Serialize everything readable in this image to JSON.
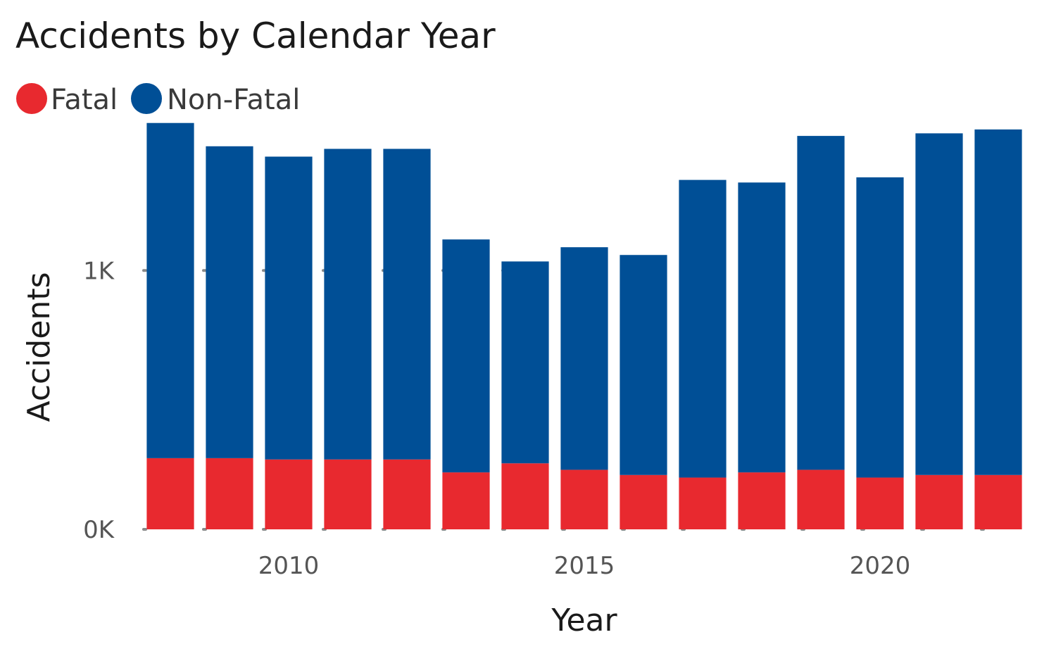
{
  "chart_data": {
    "type": "bar",
    "stacked": true,
    "title": "Accidents by Calendar Year",
    "xlabel": "Year",
    "ylabel": "Accidents",
    "x": [
      2008,
      2009,
      2010,
      2011,
      2012,
      2013,
      2014,
      2015,
      2016,
      2017,
      2018,
      2019,
      2020,
      2021,
      2022
    ],
    "x_ticks": [
      {
        "value": 2010,
        "label": "2010"
      },
      {
        "value": 2015,
        "label": "2015"
      },
      {
        "value": 2020,
        "label": "2020"
      }
    ],
    "y_ticks": [
      {
        "value": 0,
        "label": "0K"
      },
      {
        "value": 1000,
        "label": "1K"
      }
    ],
    "ylim": [
      0,
      1610
    ],
    "grid": true,
    "legend_position": "top-left",
    "series": [
      {
        "name": "Fatal",
        "color": "#e8292f",
        "values": [
          275,
          275,
          270,
          270,
          270,
          220,
          255,
          230,
          210,
          200,
          220,
          230,
          200,
          210,
          210
        ]
      },
      {
        "name": "Non-Fatal",
        "color": "#004f96",
        "values": [
          1295,
          1205,
          1170,
          1200,
          1200,
          900,
          780,
          860,
          850,
          1150,
          1120,
          1290,
          1160,
          1320,
          1335
        ]
      }
    ]
  }
}
